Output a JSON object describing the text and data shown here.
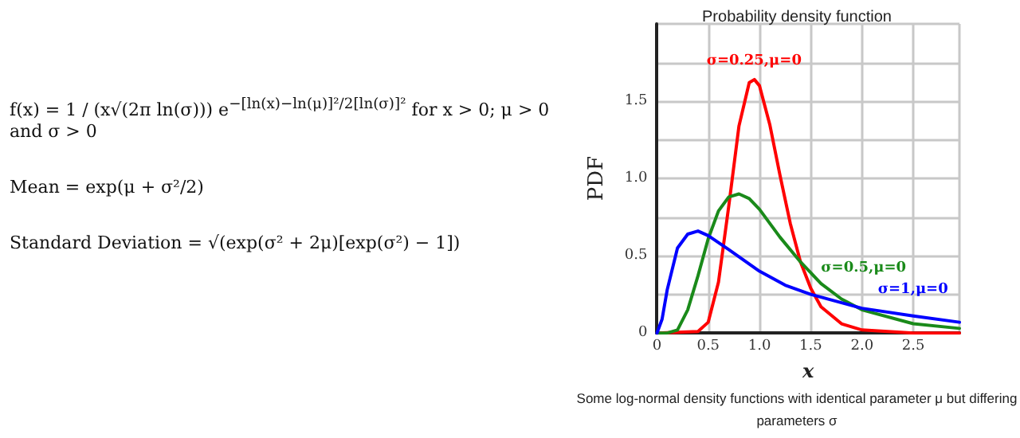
{
  "chart_data": {
    "type": "line",
    "title": "Probability density function",
    "xlabel": "x",
    "ylabel": "PDF",
    "annotations": [
      "f(x) = 1 / (x√(2π ln(σ))) e$^{−[ln(x)−ln(μ)]²/2[ln(σ)]²}$ for x > 0; μ > 0 and σ > 0",
      "Mean = exp(μ + σ²/2)",
      "Standard Deviation = √(exp(σ² + 2μ)[exp(σ²) − 1])",
      "Some log-normal density functions with identical parameter μ but differing parameters σ"
    ],
    "xlim": [
      0,
      2.95
    ],
    "xticks": [
      0,
      0.5,
      {
        "value": 1,
        "label": "1.0"
      },
      1.5,
      {
        "value": 2,
        "label": "2.0"
      },
      2.5
    ],
    "ylim": [
      0,
      2
    ],
    "yticks": [
      0,
      {
        "value": 0.25,
        "label": null
      },
      0.5,
      {
        "value": 0.75,
        "label": null
      },
      {
        "value": 1,
        "label": "1.0"
      },
      {
        "value": 1.25,
        "label": null
      },
      1.5,
      {
        "value": 1.75,
        "label": null
      }
    ],
    "grid": true,
    "marker": "none",
    "line_style": "solid",
    "legend": false,
    "series": [
      {
        "name": "σ=0.25,μ=0",
        "color": "#ff0000",
        "x": [
          0,
          0.4,
          0.5,
          0.6,
          0.7,
          0.8,
          0.9,
          0.95,
          1.0,
          1.1,
          1.2,
          1.3,
          1.4,
          1.5,
          1.6,
          1.8,
          2.0,
          2.5,
          2.95
        ],
        "values": [
          0,
          0.01,
          0.07,
          0.33,
          0.82,
          1.34,
          1.62,
          1.64,
          1.6,
          1.35,
          1.02,
          0.71,
          0.46,
          0.29,
          0.17,
          0.06,
          0.02,
          0,
          0
        ]
      },
      {
        "name": "σ=0.5,μ=0",
        "color": "#1a8a1a",
        "x": [
          0,
          0.1,
          0.2,
          0.3,
          0.4,
          0.5,
          0.6,
          0.7,
          0.8,
          0.9,
          1.0,
          1.2,
          1.4,
          1.6,
          1.8,
          2.0,
          2.5,
          2.95
        ],
        "values": [
          0,
          0,
          0.02,
          0.15,
          0.37,
          0.61,
          0.79,
          0.88,
          0.9,
          0.87,
          0.8,
          0.62,
          0.46,
          0.32,
          0.22,
          0.15,
          0.06,
          0.03
        ]
      },
      {
        "name": "σ=1,μ=0",
        "color": "#0000ff",
        "x": [
          0,
          0.05,
          0.1,
          0.2,
          0.3,
          0.4,
          0.5,
          0.7,
          1.0,
          1.25,
          1.5,
          2.0,
          2.5,
          2.95
        ],
        "values": [
          0,
          0.09,
          0.28,
          0.55,
          0.64,
          0.66,
          0.63,
          0.54,
          0.4,
          0.31,
          0.25,
          0.16,
          0.11,
          0.07
        ]
      }
    ]
  }
}
